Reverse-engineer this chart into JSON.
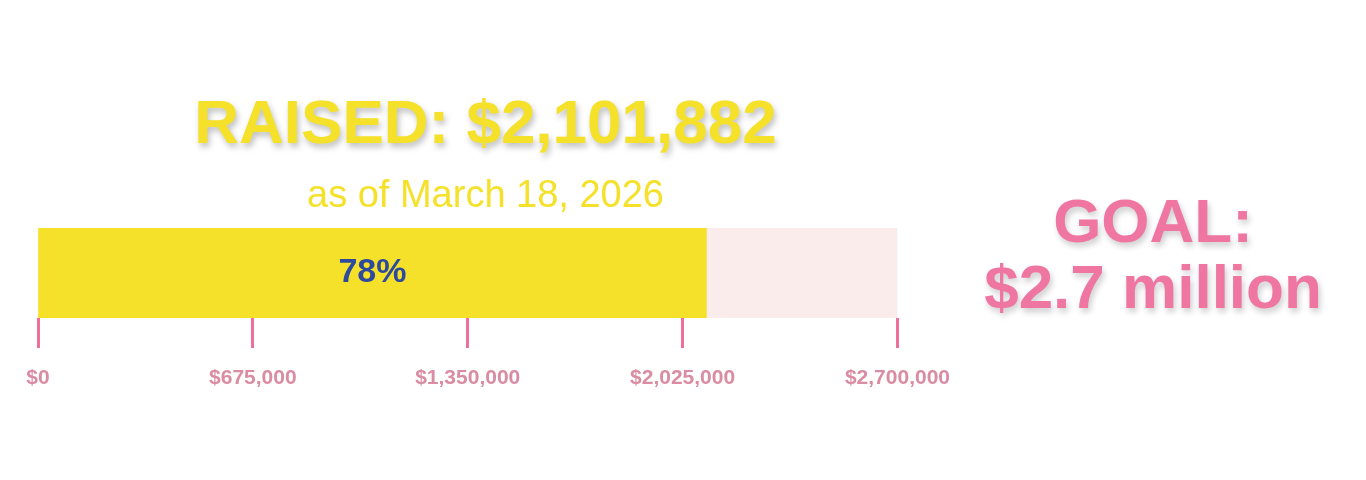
{
  "chart_data": {
    "type": "bar",
    "orientation": "horizontal",
    "title": "RAISED: $2,101,882",
    "subtitle": "as of March 18, 2026",
    "annotations": [
      "78%",
      "GOAL:",
      "$2.7 million"
    ],
    "categories": [
      null
    ],
    "stacked": true,
    "series": [
      {
        "color": "#f5e12a",
        "values": [
          2100000
        ]
      },
      {
        "color": "#f9ecea",
        "values": [
          600000
        ]
      }
    ],
    "xlim": [
      0,
      2700000
    ],
    "xticks": [
      {
        "value": 0,
        "label": "$0"
      },
      {
        "value": 675000,
        "label": "$675,000"
      },
      {
        "value": 1350000,
        "label": "$1,350,000"
      },
      {
        "value": 2025000,
        "label": "$2,025,000"
      },
      {
        "value": 2700000,
        "label": "$2,700,000"
      }
    ],
    "tick_labels": "x",
    "grid": false,
    "legend": false
  }
}
